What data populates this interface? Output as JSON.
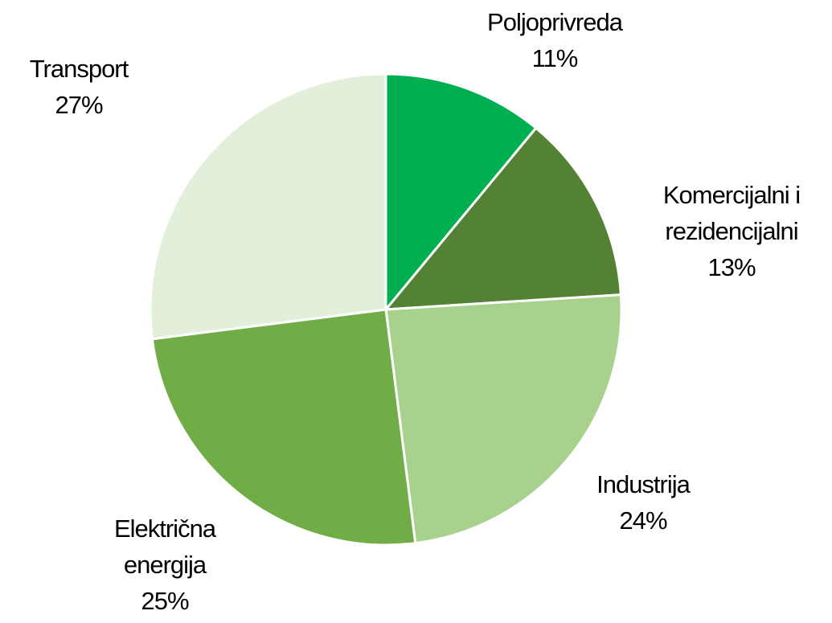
{
  "chart_data": {
    "type": "pie",
    "categories": [
      "Poljoprivreda",
      "Komercijalni i rezidencijalni",
      "Industrija",
      "Električna energija",
      "Transport"
    ],
    "values": [
      11,
      13,
      24,
      25,
      27
    ],
    "value_labels": [
      "11%",
      "13%",
      "24%",
      "25%",
      "27%"
    ],
    "colors": [
      "#00b050",
      "#548235",
      "#a9d18e",
      "#70ad47",
      "#e2efda"
    ]
  }
}
